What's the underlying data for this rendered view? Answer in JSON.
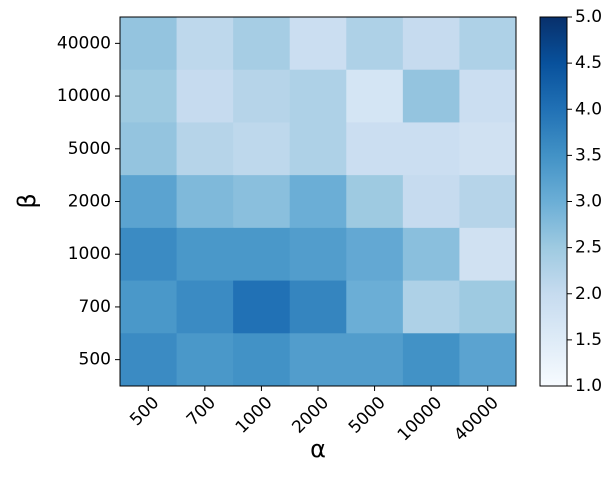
{
  "chart_data": {
    "type": "heatmap",
    "xlabel": "α",
    "ylabel": "β",
    "categories": [
      "500",
      "700",
      "1000",
      "2000",
      "5000",
      "10000",
      "40000"
    ],
    "y_categories": [
      "40000",
      "10000",
      "5000",
      "2000",
      "1000",
      "700",
      "500"
    ],
    "values": [
      [
        2.6,
        2.1,
        2.4,
        1.9,
        2.3,
        2.0,
        2.3
      ],
      [
        2.5,
        2.0,
        2.2,
        2.3,
        1.7,
        2.6,
        1.9
      ],
      [
        2.6,
        2.2,
        2.1,
        2.3,
        1.9,
        1.9,
        1.8
      ],
      [
        3.2,
        2.8,
        2.7,
        3.0,
        2.5,
        2.0,
        2.2
      ],
      [
        3.6,
        3.4,
        3.4,
        3.3,
        3.1,
        2.7,
        1.8
      ],
      [
        3.4,
        3.6,
        4.0,
        3.7,
        3.0,
        2.3,
        2.5
      ],
      [
        3.6,
        3.4,
        3.5,
        3.3,
        3.3,
        3.5,
        3.2
      ]
    ],
    "colormap": "Blues",
    "clim": [
      1,
      5
    ],
    "cticks": [
      {
        "value": 1,
        "label": "1.0"
      },
      {
        "value": 1.5,
        "label": "1.5"
      },
      {
        "value": 2,
        "label": "2.0"
      },
      {
        "value": 2.5,
        "label": "2.5"
      },
      {
        "value": 3,
        "label": "3.0"
      },
      {
        "value": 3.5,
        "label": "3.5"
      },
      {
        "value": 4,
        "label": "4.0"
      },
      {
        "value": 4.5,
        "label": "4.5"
      },
      {
        "value": 5,
        "label": "5.0"
      }
    ]
  }
}
